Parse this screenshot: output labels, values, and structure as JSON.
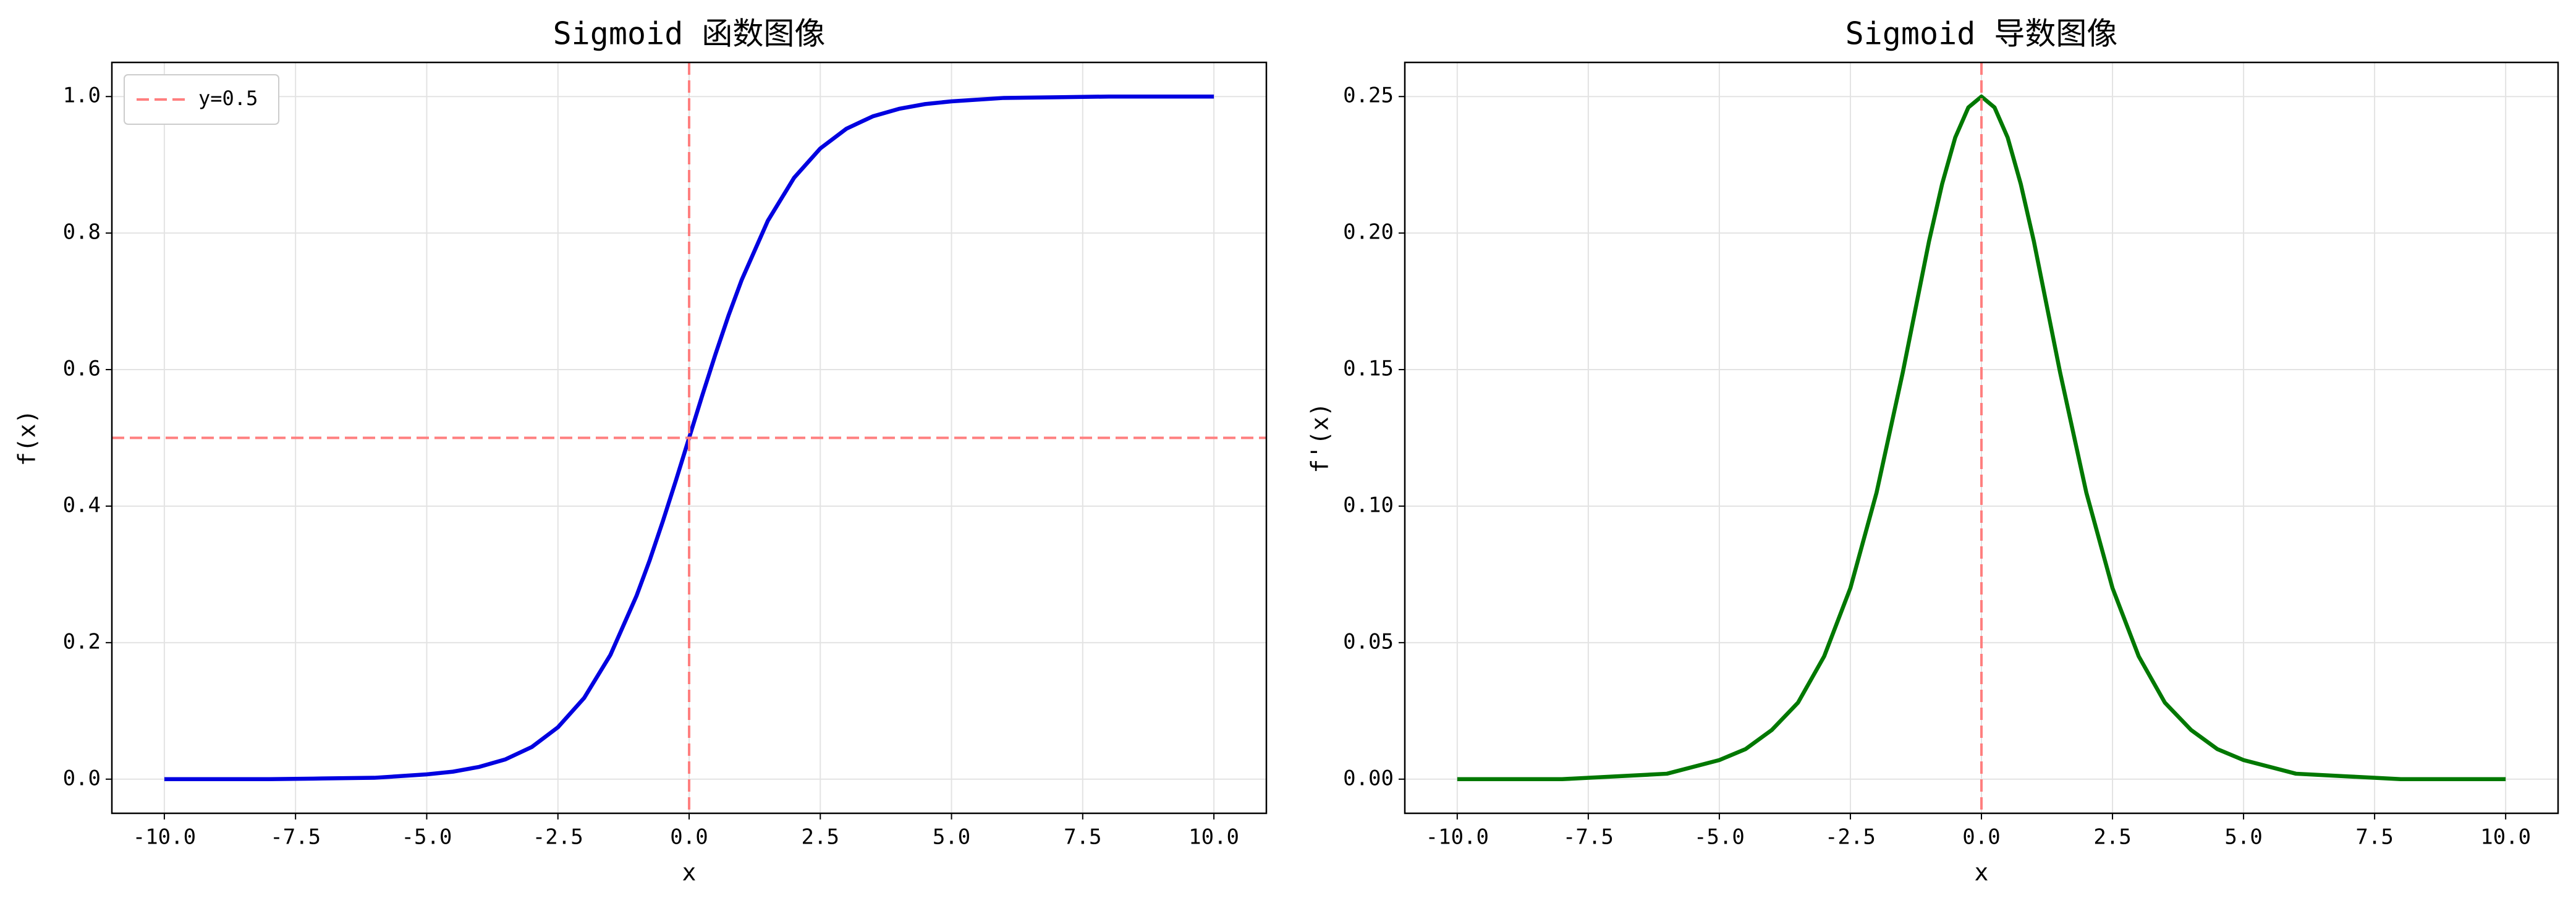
{
  "chart_data": [
    {
      "type": "line",
      "title": "Sigmoid 函数图像",
      "xlabel": "x",
      "ylabel": "f(x)",
      "x": [
        -10,
        -9,
        -8,
        -7,
        -6,
        -5,
        -4.5,
        -4,
        -3.5,
        -3,
        -2.5,
        -2,
        -1.5,
        -1,
        -0.75,
        -0.5,
        -0.25,
        0,
        0.25,
        0.5,
        0.75,
        1,
        1.5,
        2,
        2.5,
        3,
        3.5,
        4,
        4.5,
        5,
        6,
        7,
        8,
        9,
        10
      ],
      "values": [
        0.0,
        0.0,
        0.0,
        0.001,
        0.002,
        0.007,
        0.011,
        0.018,
        0.029,
        0.047,
        0.076,
        0.119,
        0.182,
        0.269,
        0.321,
        0.378,
        0.438,
        0.5,
        0.562,
        0.622,
        0.679,
        0.731,
        0.818,
        0.881,
        0.924,
        0.953,
        0.971,
        0.982,
        0.989,
        0.993,
        0.998,
        0.999,
        1.0,
        1.0,
        1.0
      ],
      "color": "#0000e0",
      "reference_lines": [
        {
          "axis": "y",
          "value": 0.5,
          "name": "y=0.5",
          "color": "#ff7f7f"
        },
        {
          "axis": "x",
          "value": 0,
          "color": "#ff7f7f"
        }
      ],
      "legend": "upper left",
      "xlim": [
        -11,
        11
      ],
      "xticks": [
        {
          "value": -10,
          "label": "-10.0"
        },
        -7.5,
        {
          "value": -5,
          "label": "-5.0"
        },
        -2.5,
        {
          "value": 0,
          "label": "0.0"
        },
        2.5,
        {
          "value": 5,
          "label": "5.0"
        },
        7.5,
        {
          "value": 10,
          "label": "10.0"
        }
      ],
      "ylim": [
        -0.05,
        1.05
      ],
      "yticks": [
        {
          "value": 0,
          "label": "0.0"
        },
        0.2,
        0.4,
        0.6,
        0.8,
        {
          "value": 1,
          "label": "1.0"
        }
      ],
      "grid": true
    },
    {
      "type": "line",
      "title": "Sigmoid 导数图像",
      "xlabel": "x",
      "ylabel": "f'(x)",
      "x": [
        -10,
        -9,
        -8,
        -7,
        -6,
        -5,
        -4.5,
        -4,
        -3.5,
        -3,
        -2.5,
        -2,
        -1.5,
        -1,
        -0.75,
        -0.5,
        -0.25,
        0,
        0.25,
        0.5,
        0.75,
        1,
        1.5,
        2,
        2.5,
        3,
        3.5,
        4,
        4.5,
        5,
        6,
        7,
        8,
        9,
        10
      ],
      "values": [
        0.0,
        0.0,
        0.0,
        0.001,
        0.002,
        0.007,
        0.011,
        0.018,
        0.028,
        0.045,
        0.07,
        0.105,
        0.149,
        0.197,
        0.218,
        0.235,
        0.246,
        0.25,
        0.246,
        0.235,
        0.218,
        0.197,
        0.149,
        0.105,
        0.07,
        0.045,
        0.028,
        0.018,
        0.011,
        0.007,
        0.002,
        0.001,
        0.0,
        0.0,
        0.0
      ],
      "color": "#007800",
      "reference_lines": [
        {
          "axis": "x",
          "value": 0,
          "color": "#ff7f7f"
        }
      ],
      "xlim": [
        -11,
        11
      ],
      "xticks": [
        {
          "value": -10,
          "label": "-10.0"
        },
        -7.5,
        {
          "value": -5,
          "label": "-5.0"
        },
        -2.5,
        {
          "value": 0,
          "label": "0.0"
        },
        2.5,
        {
          "value": 5,
          "label": "5.0"
        },
        7.5,
        {
          "value": 10,
          "label": "10.0"
        }
      ],
      "ylim": [
        -0.0125,
        0.2625
      ],
      "yticks": [
        {
          "value": 0,
          "label": "0.00"
        },
        0.05,
        {
          "value": 0.1,
          "label": "0.10"
        },
        0.15,
        {
          "value": 0.2,
          "label": "0.20"
        },
        0.25
      ],
      "grid": true
    }
  ]
}
